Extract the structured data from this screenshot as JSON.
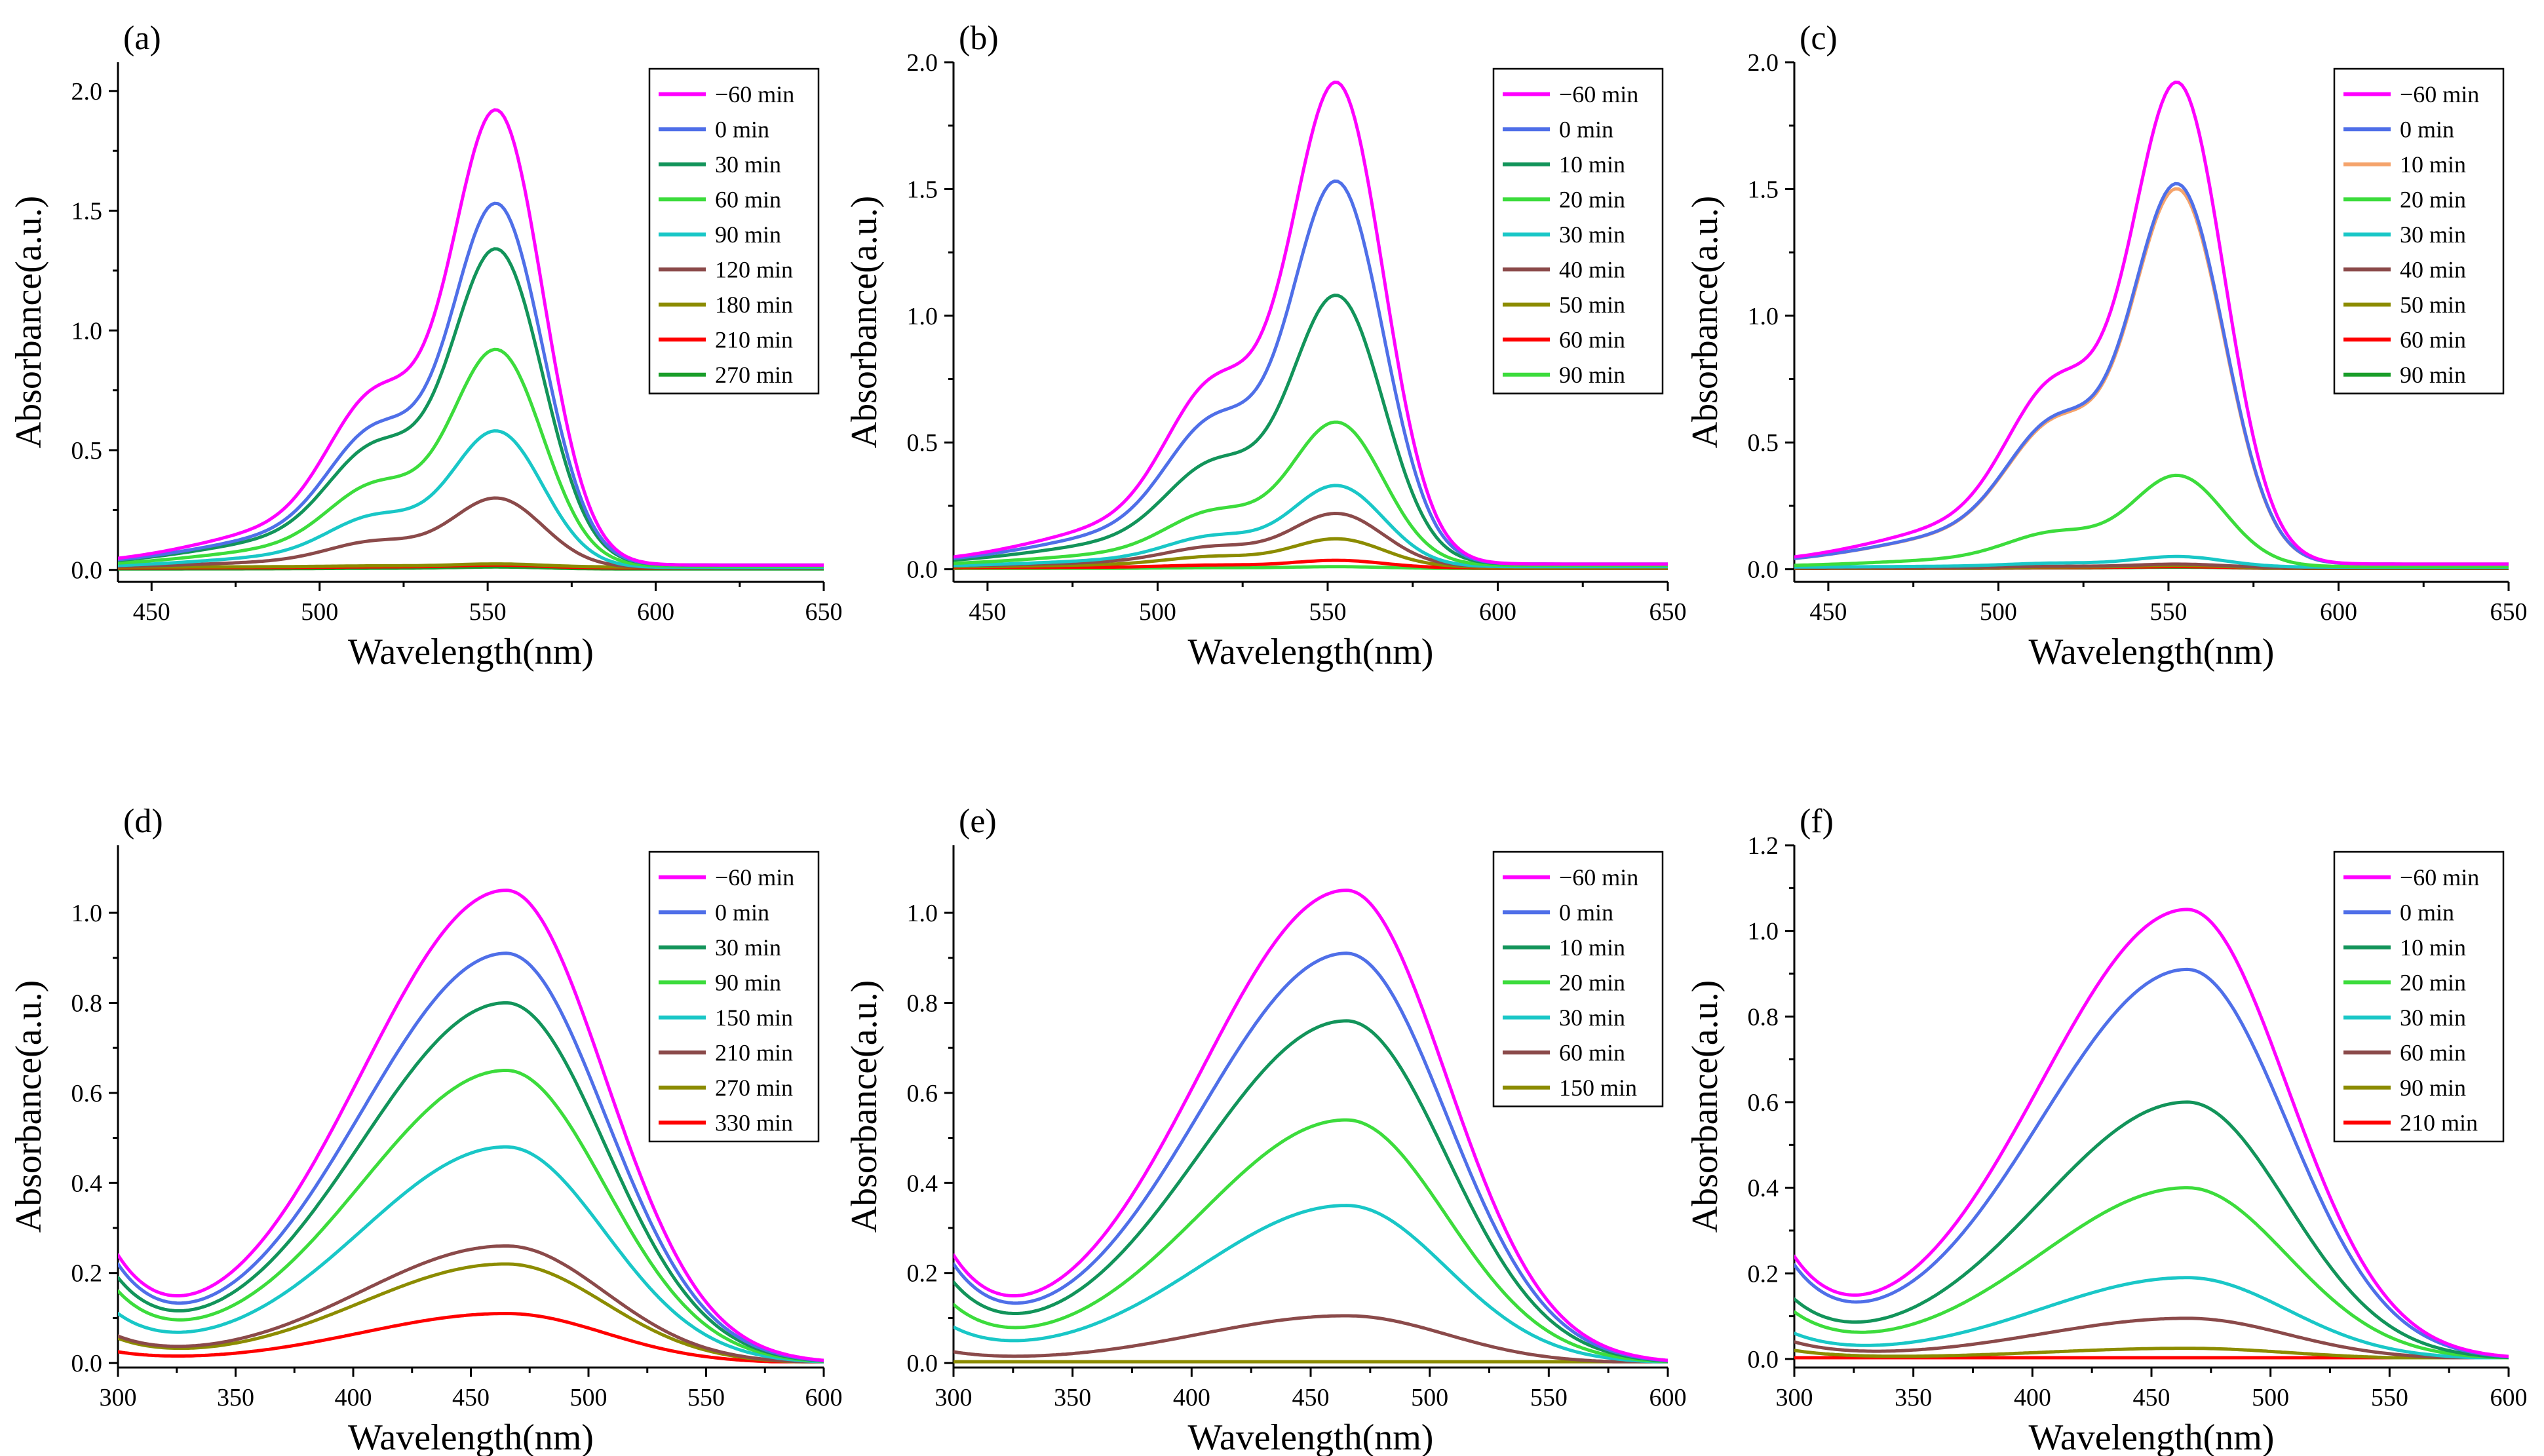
{
  "figure_colors": {
    "-60": "#ff00ff",
    "0": "#4f6fe8",
    "30": "#12945a",
    "60": "#3cdc3c",
    "90": "#19c7c7",
    "120": "#8b4a4a",
    "180": "#8c8c00",
    "210": "#ff0000",
    "270": "#1a9e2a"
  },
  "chart_data": [
    {
      "panel": "(a)",
      "type": "line",
      "xlabel": "Wavelength(nm)",
      "ylabel": "Absorbance(a.u.)",
      "xlim": [
        440,
        650
      ],
      "ylim": [
        -0.05,
        2.12
      ],
      "xticks": [
        "450",
        "500",
        "550",
        "600",
        "650"
      ],
      "xtick_values": [
        450,
        500,
        550,
        600,
        650
      ],
      "yticks": [
        "0.0",
        "0.5",
        "1.0",
        "1.5",
        "2.0"
      ],
      "ytick_values": [
        0,
        0.5,
        1.0,
        1.5,
        2.0
      ],
      "legend_position": "top-right",
      "peak_nm": 553,
      "shoulder_nm": 517,
      "range_min": 440,
      "range_max": 650,
      "series": [
        {
          "name": "−60 min",
          "peak": 1.92,
          "base": 0.02,
          "color": "#ff00ff"
        },
        {
          "name": "0 min",
          "peak": 1.53,
          "base": 0.02,
          "color": "#4f6fe8"
        },
        {
          "name": "30 min",
          "peak": 1.34,
          "base": 0.02,
          "color": "#12945a"
        },
        {
          "name": "60 min",
          "peak": 0.92,
          "base": 0.015,
          "color": "#3cdc3c"
        },
        {
          "name": "90 min",
          "peak": 0.58,
          "base": 0.01,
          "color": "#19c7c7"
        },
        {
          "name": "120 min",
          "peak": 0.3,
          "base": 0.01,
          "color": "#8b4a4a"
        },
        {
          "name": "180 min",
          "peak": 0.025,
          "base": 0.012,
          "color": "#8c8c00"
        },
        {
          "name": "210 min",
          "peak": 0.02,
          "base": 0.008,
          "color": "#ff0000"
        },
        {
          "name": "270 min",
          "peak": 0.012,
          "base": 0.004,
          "color": "#1a9e2a"
        }
      ]
    },
    {
      "panel": "(b)",
      "type": "line",
      "xlabel": "Wavelength(nm)",
      "ylabel": "Absorbance(a.u.)",
      "xlim": [
        440,
        650
      ],
      "ylim": [
        -0.05,
        2.0
      ],
      "xticks": [
        "450",
        "500",
        "550",
        "600",
        "650"
      ],
      "xtick_values": [
        450,
        500,
        550,
        600,
        650
      ],
      "yticks": [
        "0.0",
        "0.5",
        "1.0",
        "1.5",
        "2.0"
      ],
      "ytick_values": [
        0,
        0.5,
        1.0,
        1.5,
        2.0
      ],
      "legend_position": "top-right",
      "peak_nm": 553,
      "shoulder_nm": 517,
      "range_min": 440,
      "range_max": 650,
      "series": [
        {
          "name": "−60 min",
          "peak": 1.92,
          "base": 0.02,
          "color": "#ff00ff"
        },
        {
          "name": "0 min",
          "peak": 1.53,
          "base": 0.02,
          "color": "#4f6fe8"
        },
        {
          "name": "10 min",
          "peak": 1.08,
          "base": 0.02,
          "color": "#12945a"
        },
        {
          "name": "20 min",
          "peak": 0.58,
          "base": 0.015,
          "color": "#3cdc3c"
        },
        {
          "name": "30 min",
          "peak": 0.33,
          "base": 0.01,
          "color": "#19c7c7"
        },
        {
          "name": "40 min",
          "peak": 0.22,
          "base": 0.01,
          "color": "#8b4a4a"
        },
        {
          "name": "50 min",
          "peak": 0.12,
          "base": 0.008,
          "color": "#8c8c00"
        },
        {
          "name": "60 min",
          "peak": 0.035,
          "base": 0.005,
          "color": "#ff0000"
        },
        {
          "name": "90 min",
          "peak": 0.01,
          "base": 0.003,
          "color": "#3cdc3c"
        }
      ]
    },
    {
      "panel": "(c)",
      "type": "line",
      "xlabel": "Wavelength(nm)",
      "ylabel": "Absorbance(a.u.)",
      "xlim": [
        440,
        650
      ],
      "ylim": [
        -0.05,
        2.0
      ],
      "xticks": [
        "450",
        "500",
        "550",
        "600",
        "650"
      ],
      "xtick_values": [
        450,
        500,
        550,
        600,
        650
      ],
      "yticks": [
        "0.0",
        "0.5",
        "1.0",
        "1.5",
        "2.0"
      ],
      "ytick_values": [
        0,
        0.5,
        1.0,
        1.5,
        2.0
      ],
      "legend_position": "top-right",
      "peak_nm": 553,
      "shoulder_nm": 517,
      "range_min": 440,
      "range_max": 650,
      "series": [
        {
          "name": "−60 min",
          "peak": 1.92,
          "base": 0.02,
          "color": "#ff00ff"
        },
        {
          "name": "0 min",
          "peak": 1.52,
          "base": 0.02,
          "color": "#4f6fe8"
        },
        {
          "name": "10 min",
          "peak": 1.5,
          "base": 0.02,
          "color": "#f5a36b"
        },
        {
          "name": "20 min",
          "peak": 0.37,
          "base": 0.01,
          "color": "#3cdc3c"
        },
        {
          "name": "30 min",
          "peak": 0.05,
          "base": 0.008,
          "color": "#19c7c7"
        },
        {
          "name": "40 min",
          "peak": 0.02,
          "base": 0.006,
          "color": "#8b4a4a"
        },
        {
          "name": "50 min",
          "peak": 0.015,
          "base": 0.005,
          "color": "#8c8c00"
        },
        {
          "name": "60 min",
          "peak": 0.01,
          "base": 0.004,
          "color": "#ff0000"
        },
        {
          "name": "90 min",
          "peak": 0.008,
          "base": 0.003,
          "color": "#1a9e2a"
        }
      ]
    },
    {
      "panel": "(d)",
      "type": "line",
      "xlabel": "Wavelength(nm)",
      "ylabel": "Absorbance(a.u.)",
      "xlim": [
        300,
        600
      ],
      "ylim": [
        -0.01,
        1.15
      ],
      "xticks": [
        "300",
        "350",
        "400",
        "450",
        "500",
        "550",
        "600"
      ],
      "xtick_values": [
        300,
        350,
        400,
        450,
        500,
        550,
        600
      ],
      "yticks": [
        "0.0",
        "0.2",
        "0.4",
        "0.6",
        "0.8",
        "1.0"
      ],
      "ytick_values": [
        0,
        0.2,
        0.4,
        0.6,
        0.8,
        1.0
      ],
      "legend_position": "top-right",
      "peak_nm": 465,
      "dip_nm": 338,
      "range_min": 300,
      "range_max": 600,
      "series": [
        {
          "name": "−60 min",
          "peak": 1.05,
          "start": 0.24,
          "dip": 0.1,
          "color": "#ff00ff"
        },
        {
          "name": "0 min",
          "peak": 0.91,
          "start": 0.22,
          "dip": 0.09,
          "color": "#4f6fe8"
        },
        {
          "name": "30 min",
          "peak": 0.8,
          "start": 0.19,
          "dip": 0.08,
          "color": "#12945a"
        },
        {
          "name": "90 min",
          "peak": 0.65,
          "start": 0.16,
          "dip": 0.065,
          "color": "#3cdc3c"
        },
        {
          "name": "150 min",
          "peak": 0.48,
          "start": 0.11,
          "dip": 0.05,
          "color": "#19c7c7"
        },
        {
          "name": "210 min",
          "peak": 0.26,
          "start": 0.06,
          "dip": 0.03,
          "color": "#8b4a4a"
        },
        {
          "name": "270 min",
          "peak": 0.22,
          "start": 0.055,
          "dip": 0.025,
          "color": "#8c8c00"
        },
        {
          "name": "330 min",
          "peak": 0.11,
          "start": 0.025,
          "dip": 0.012,
          "color": "#ff0000"
        }
      ]
    },
    {
      "panel": "(e)",
      "type": "line",
      "xlabel": "Wavelength(nm)",
      "ylabel": "Absorbance(a.u.)",
      "xlim": [
        300,
        600
      ],
      "ylim": [
        -0.01,
        1.15
      ],
      "xticks": [
        "300",
        "350",
        "400",
        "450",
        "500",
        "550",
        "600"
      ],
      "xtick_values": [
        300,
        350,
        400,
        450,
        500,
        550,
        600
      ],
      "yticks": [
        "0.0",
        "0.2",
        "0.4",
        "0.6",
        "0.8",
        "1.0"
      ],
      "ytick_values": [
        0,
        0.2,
        0.4,
        0.6,
        0.8,
        1.0
      ],
      "legend_position": "top-right",
      "peak_nm": 465,
      "dip_nm": 338,
      "range_min": 300,
      "range_max": 600,
      "series": [
        {
          "name": "−60 min",
          "peak": 1.05,
          "start": 0.24,
          "dip": 0.1,
          "color": "#ff00ff"
        },
        {
          "name": "0 min",
          "peak": 0.91,
          "start": 0.22,
          "dip": 0.09,
          "color": "#4f6fe8"
        },
        {
          "name": "10 min",
          "peak": 0.76,
          "start": 0.18,
          "dip": 0.075,
          "color": "#12945a"
        },
        {
          "name": "20 min",
          "peak": 0.54,
          "start": 0.13,
          "dip": 0.055,
          "color": "#3cdc3c"
        },
        {
          "name": "30 min",
          "peak": 0.35,
          "start": 0.08,
          "dip": 0.035,
          "color": "#19c7c7"
        },
        {
          "name": "60 min",
          "peak": 0.105,
          "start": 0.025,
          "dip": 0.012,
          "color": "#8b4a4a"
        },
        {
          "name": "150 min",
          "peak": 0.003,
          "start": 0.002,
          "dip": 0.001,
          "color": "#8c8c00"
        }
      ]
    },
    {
      "panel": "(f)",
      "type": "line",
      "xlabel": "Wavelength(nm)",
      "ylabel": "Absorbance(a.u.)",
      "xlim": [
        300,
        600
      ],
      "ylim": [
        -0.02,
        1.2
      ],
      "xticks": [
        "300",
        "350",
        "400",
        "450",
        "500",
        "550",
        "600"
      ],
      "xtick_values": [
        300,
        350,
        400,
        450,
        500,
        550,
        600
      ],
      "yticks": [
        "0.0",
        "0.2",
        "0.4",
        "0.6",
        "0.8",
        "1.0",
        "1.2"
      ],
      "ytick_values": [
        0,
        0.2,
        0.4,
        0.6,
        0.8,
        1.0,
        1.2
      ],
      "legend_position": "top-right",
      "peak_nm": 465,
      "dip_nm": 338,
      "range_min": 300,
      "range_max": 600,
      "series": [
        {
          "name": "−60 min",
          "peak": 1.05,
          "start": 0.24,
          "dip": 0.1,
          "color": "#ff00ff"
        },
        {
          "name": "0 min",
          "peak": 0.91,
          "start": 0.22,
          "dip": 0.09,
          "color": "#4f6fe8"
        },
        {
          "name": "10 min",
          "peak": 0.6,
          "start": 0.14,
          "dip": 0.07,
          "color": "#12945a"
        },
        {
          "name": "20 min",
          "peak": 0.4,
          "start": 0.11,
          "dip": 0.06,
          "color": "#3cdc3c"
        },
        {
          "name": "30 min",
          "peak": 0.19,
          "start": 0.06,
          "dip": 0.04,
          "color": "#19c7c7"
        },
        {
          "name": "60 min",
          "peak": 0.095,
          "start": 0.04,
          "dip": 0.03,
          "color": "#8b4a4a"
        },
        {
          "name": "90 min",
          "peak": 0.025,
          "start": 0.02,
          "dip": 0.015,
          "color": "#8c8c00"
        },
        {
          "name": "210 min",
          "peak": 0.002,
          "start": 0.002,
          "dip": 0.001,
          "color": "#ff0000"
        }
      ]
    }
  ]
}
